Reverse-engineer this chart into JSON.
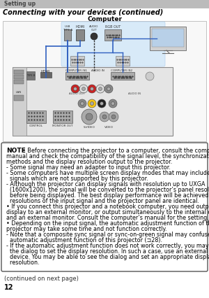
{
  "page_bg": "#ffffff",
  "header_bar_color": "#bbbbbb",
  "header_text": "Setting up",
  "header_text_color": "#444444",
  "title": "Connecting with your devices (continued)",
  "diagram_label": "Computer",
  "note_box_border": "#444444",
  "note_box_bg": "#ffffff",
  "note_label": "NOTE",
  "note_bullet1": " • Before connecting the projector to a computer, consult the computer’s",
  "note_line2": "manual and check the compatibility of the signal level, the synchronization",
  "note_line3": "methods and the display resolution output to the projector.",
  "note_line4": "- Some signal may need an adapter to input this projector.",
  "note_line5": "- Some computers have multiple screen display modes that may include some",
  "note_line6": "  signals which are not supported by this projector.",
  "note_line7": "- Although the projector can display signals with resolution up to UXGA",
  "note_line8": "  (1600x1200), the signal will be converted to the projector’s panel resolution",
  "note_line9": "  before being displayed. The best display performance will be achieved if the",
  "note_line10": "  resolutions of the input signal and the projector panel are identical.",
  "note_line11": "• If you connect this projector and a notebook computer, you need output the",
  "note_line12": "display to an external monitor, or output simultaneously to the internal display",
  "note_line13": "and an external monitor. Consult the computer’s manual for the setting.",
  "note_line14": "• Depending on the input signal, the automatic adjustment function of this",
  "note_line15": "projector may take some time and not function correctly.",
  "note_line16": "- Note that a composite sync signal or sync-on-green signal may confuse the",
  "note_line17": "  automatic adjustment function of this projector (⊐28).",
  "note_line18": "- If the automatic adjustment function does not work correctly, you may not see",
  "note_line19": "  the dialog to set the display resolution. In such a case, use an external display",
  "note_line20": "  device. You may be able to see the dialog and set an appropriate display",
  "note_line21": "  resolution.",
  "footer_text": "(continued on next page)",
  "page_number": "12",
  "cable_color": "#3060c0",
  "body_fontsize": 5.8,
  "note_lines": [
    "• Before connecting the projector to a computer, consult the computer’s",
    "manual and check the compatibility of the signal level, the synchronization",
    "methods and the display resolution output to the projector.",
    "- Some signal may need an adapter to input this projector.",
    "- Some computers have multiple screen display modes that may include some",
    "  signals which are not supported by this projector.",
    "- Although the projector can display signals with resolution up to UXGA",
    "  (1600x1200), the signal will be converted to the projector’s panel resolution",
    "  before being displayed. The best display performance will be achieved if the",
    "  resolutions of the input signal and the projector panel are identical.",
    "• If you connect this projector and a notebook computer, you need output the",
    "display to an external monitor, or output simultaneously to the internal display",
    "and an external monitor. Consult the computer’s manual for the setting.",
    "• Depending on the input signal, the automatic adjustment function of this",
    "projector may take some time and not function correctly.",
    "- Note that a composite sync signal or sync-on-green signal may confuse the",
    "  automatic adjustment function of this projector (⊐28).",
    "- If the automatic adjustment function does not work correctly, you may not see",
    "  the dialog to set the display resolution. In such a case, use an external display",
    "  device. You may be able to see the dialog and set an appropriate display",
    "  resolution."
  ]
}
